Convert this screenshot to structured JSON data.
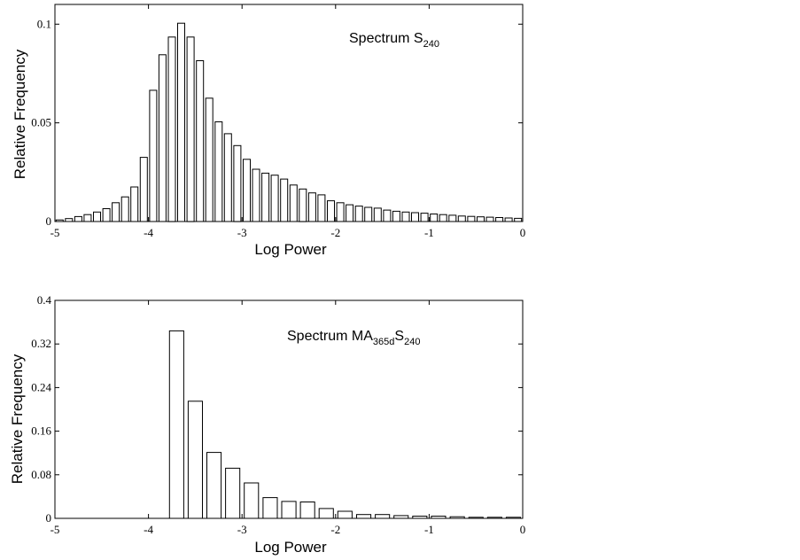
{
  "chart_data": [
    {
      "type": "bar",
      "title": "Spectrum S",
      "title_subscript": "240",
      "xlabel": "Log Power",
      "ylabel": "Relative Frequency",
      "xlim": [
        -5,
        0
      ],
      "ylim": [
        0,
        0.11
      ],
      "xticks": [
        -5,
        -4,
        -3,
        -2,
        -1,
        0
      ],
      "xtick_labels": [
        "-5",
        "-4",
        "-3",
        "-2",
        "-1",
        "0"
      ],
      "yticks": [
        0,
        0.05,
        0.1
      ],
      "ytick_labels": [
        "0",
        "0.05",
        "0.1"
      ],
      "bin_width": 0.1,
      "x": [
        -4.95,
        -4.85,
        -4.75,
        -4.65,
        -4.55,
        -4.45,
        -4.35,
        -4.25,
        -4.15,
        -4.05,
        -3.95,
        -3.85,
        -3.75,
        -3.65,
        -3.55,
        -3.45,
        -3.35,
        -3.25,
        -3.15,
        -3.05,
        -2.95,
        -2.85,
        -2.75,
        -2.65,
        -2.55,
        -2.45,
        -2.35,
        -2.25,
        -2.15,
        -2.05,
        -1.95,
        -1.85,
        -1.75,
        -1.65,
        -1.55,
        -1.45,
        -1.35,
        -1.25,
        -1.15,
        -1.05,
        -0.95,
        -0.85,
        -0.75,
        -0.65,
        -0.55,
        -0.45,
        -0.35,
        -0.25,
        -0.15,
        -0.05
      ],
      "values": [
        0.0008,
        0.0015,
        0.0025,
        0.0035,
        0.0048,
        0.0065,
        0.0095,
        0.0125,
        0.0175,
        0.0325,
        0.0665,
        0.0845,
        0.0935,
        0.1005,
        0.0935,
        0.0815,
        0.0625,
        0.0505,
        0.0445,
        0.0385,
        0.0315,
        0.0265,
        0.0245,
        0.0235,
        0.0215,
        0.0185,
        0.0165,
        0.0145,
        0.0135,
        0.0105,
        0.0095,
        0.0085,
        0.0078,
        0.0072,
        0.0068,
        0.0058,
        0.0052,
        0.0048,
        0.0045,
        0.0042,
        0.0038,
        0.0035,
        0.0032,
        0.0028,
        0.0026,
        0.0024,
        0.0022,
        0.002,
        0.0018,
        0.0016
      ]
    },
    {
      "type": "bar",
      "title": "Spectrum MA",
      "title_subscript_1": "365d",
      "title_mid": "S",
      "title_subscript_2": "240",
      "xlabel": "Log Power",
      "ylabel": "Relative Frequency",
      "xlim": [
        -5,
        0
      ],
      "ylim": [
        0,
        0.4
      ],
      "xticks": [
        -5,
        -4,
        -3,
        -2,
        -1,
        0
      ],
      "xtick_labels": [
        "-5",
        "-4",
        "-3",
        "-2",
        "-1",
        "0"
      ],
      "yticks": [
        0,
        0.08,
        0.16,
        0.24,
        0.32,
        0.4
      ],
      "ytick_labels": [
        "0",
        "0.08",
        "0.16",
        "0.24",
        "0.32",
        "0.4"
      ],
      "bin_width": 0.2,
      "x": [
        -4.9,
        -4.7,
        -4.5,
        -4.3,
        -4.1,
        -3.9,
        -3.7,
        -3.5,
        -3.3,
        -3.1,
        -2.9,
        -2.7,
        -2.5,
        -2.3,
        -2.1,
        -1.9,
        -1.7,
        -1.5,
        -1.3,
        -1.1,
        -0.9,
        -0.7,
        -0.5,
        -0.3,
        -0.1
      ],
      "values": [
        0,
        0,
        0,
        0,
        0,
        0,
        0.344,
        0.215,
        0.121,
        0.092,
        0.065,
        0.038,
        0.031,
        0.03,
        0.018,
        0.013,
        0.007,
        0.007,
        0.005,
        0.004,
        0.004,
        0.003,
        0.002,
        0.002,
        0.002
      ]
    }
  ]
}
